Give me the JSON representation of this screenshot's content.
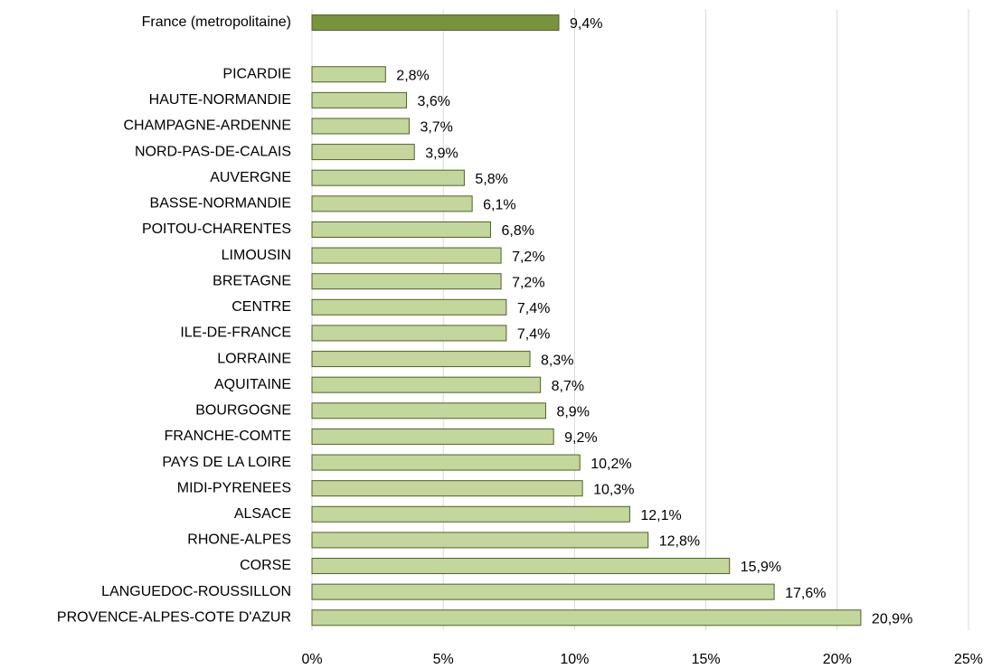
{
  "chart_data": {
    "type": "bar",
    "orientation": "horizontal",
    "categories": [
      "France (metropolitaine)",
      null,
      "PICARDIE",
      "HAUTE-NORMANDIE",
      "CHAMPAGNE-ARDENNE",
      "NORD-PAS-DE-CALAIS",
      "AUVERGNE",
      "BASSE-NORMANDIE",
      "POITOU-CHARENTES",
      "LIMOUSIN",
      "BRETAGNE",
      "CENTRE",
      "ILE-DE-FRANCE",
      "LORRAINE",
      "AQUITAINE",
      "BOURGOGNE",
      "FRANCHE-COMTE",
      "PAYS DE LA LOIRE",
      "MIDI-PYRENEES",
      "ALSACE",
      "RHONE-ALPES",
      "CORSE",
      "LANGUEDOC-ROUSSILLON",
      "PROVENCE-ALPES-COTE D'AZUR"
    ],
    "values": [
      9.4,
      null,
      2.8,
      3.6,
      3.7,
      3.9,
      5.8,
      6.1,
      6.8,
      7.2,
      7.2,
      7.4,
      7.4,
      8.3,
      8.7,
      8.9,
      9.2,
      10.2,
      10.3,
      12.1,
      12.8,
      15.9,
      17.6,
      20.9
    ],
    "value_labels": [
      "9,4%",
      null,
      "2,8%",
      "3,6%",
      "3,7%",
      "3,9%",
      "5,8%",
      "6,1%",
      "6,8%",
      "7,2%",
      "7,2%",
      "7,4%",
      "7,4%",
      "8,3%",
      "8,7%",
      "8,9%",
      "9,2%",
      "10,2%",
      "10,3%",
      "12,1%",
      "12,8%",
      "15,9%",
      "17,6%",
      "20,9%"
    ],
    "colors": [
      "#77933c",
      null,
      "#c3d69b",
      "#c3d69b",
      "#c3d69b",
      "#c3d69b",
      "#c3d69b",
      "#c3d69b",
      "#c3d69b",
      "#c3d69b",
      "#c3d69b",
      "#c3d69b",
      "#c3d69b",
      "#c3d69b",
      "#c3d69b",
      "#c3d69b",
      "#c3d69b",
      "#c3d69b",
      "#c3d69b",
      "#c3d69b",
      "#c3d69b",
      "#c3d69b",
      "#c3d69b",
      "#c3d69b"
    ],
    "edgecolor": "#4f6228",
    "xlim": [
      0,
      25
    ],
    "xticks": [
      {
        "value": 0,
        "label": "0%"
      },
      {
        "value": 5,
        "label": "5%"
      },
      {
        "value": 10,
        "label": "10%"
      },
      {
        "value": 15,
        "label": "15%"
      },
      {
        "value": 20,
        "label": "20%"
      },
      {
        "value": 25,
        "label": "25%"
      }
    ],
    "grid": true
  }
}
